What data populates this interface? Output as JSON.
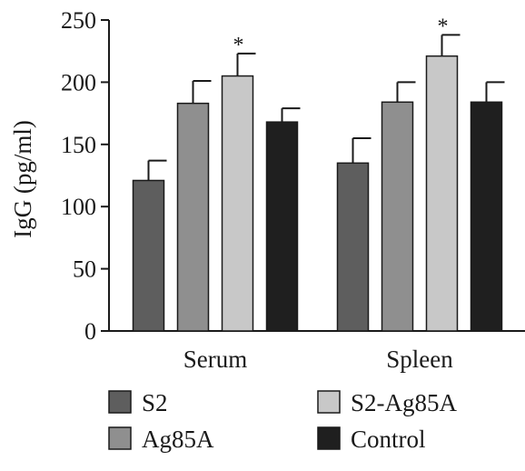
{
  "chart_data": {
    "type": "bar",
    "title": "",
    "xlabel": "",
    "ylabel": "IgG (pg/ml)",
    "ylim": [
      0,
      250
    ],
    "yticks": [
      0,
      50,
      100,
      150,
      200,
      250
    ],
    "categories": [
      "Serum",
      "Spleen"
    ],
    "series": [
      {
        "name": "S2",
        "color": "#5e5e5e",
        "values": [
          121,
          135
        ],
        "errors": [
          16,
          20
        ],
        "significance": [
          "",
          ""
        ]
      },
      {
        "name": "Ag85A",
        "color": "#8f8f8f",
        "values": [
          183,
          184
        ],
        "errors": [
          18,
          16
        ],
        "significance": [
          "",
          ""
        ]
      },
      {
        "name": "S2-Ag85A",
        "color": "#c8c8c8",
        "values": [
          205,
          221
        ],
        "errors": [
          18,
          17
        ],
        "significance": [
          "*",
          "*"
        ]
      },
      {
        "name": "Control",
        "color": "#1f1f1f",
        "values": [
          168,
          184
        ],
        "errors": [
          11,
          16
        ],
        "significance": [
          "",
          ""
        ]
      }
    ],
    "legend": {
      "placement": "bottom",
      "columns": 2,
      "order": [
        "S2",
        "S2-Ag85A",
        "Ag85A",
        "Control"
      ]
    },
    "grid": false
  }
}
